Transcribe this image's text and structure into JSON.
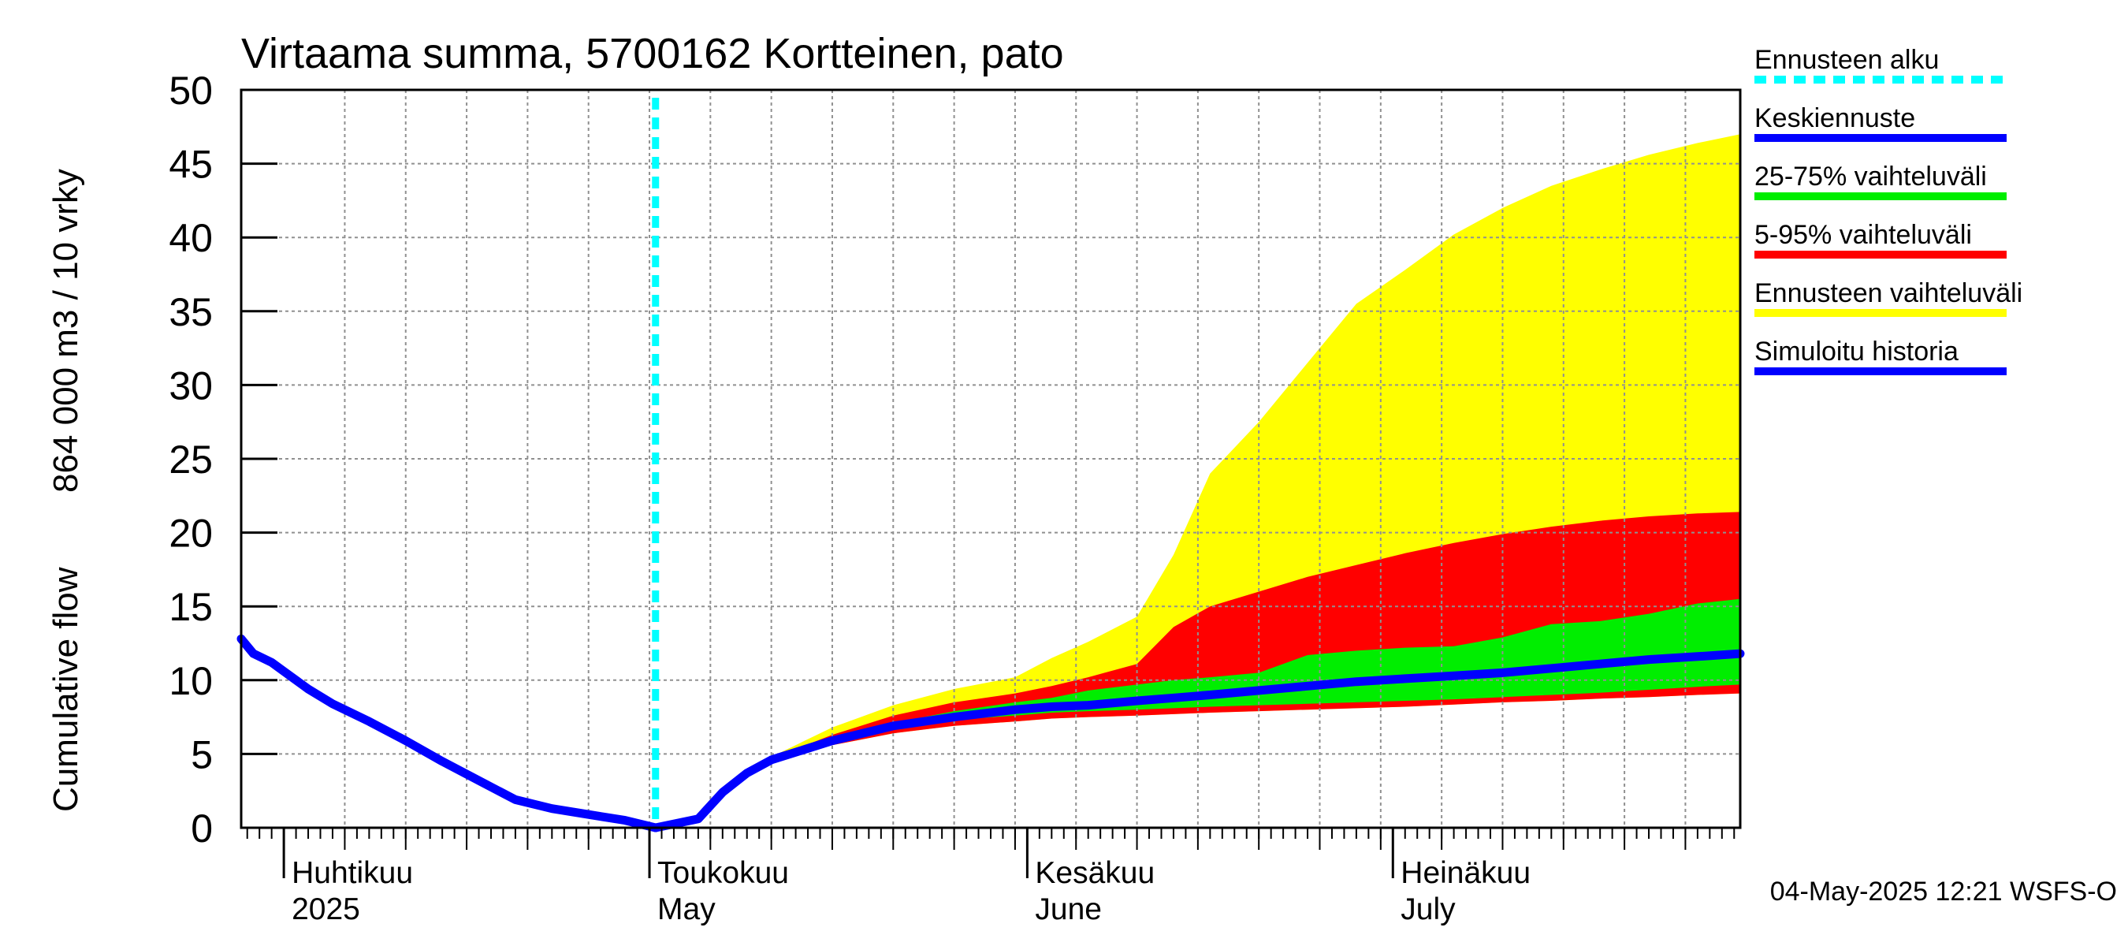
{
  "chart_data": {
    "type": "area",
    "title": "Virtaama summa, 5700162 Kortteinen, pato",
    "ylabel_left": "Cumulative flow",
    "ylabel_right": "864 000 m3 / 10 vrky",
    "ylim": [
      0,
      50
    ],
    "yticks": [
      "0",
      "5",
      "10",
      "15",
      "20",
      "25",
      "30",
      "35",
      "40",
      "45",
      "50"
    ],
    "xlim_days": [
      -3.5,
      119.5
    ],
    "x_unit": "days since 2025-04-01",
    "month_labels": [
      {
        "day": 0,
        "fi": "Huhtikuu",
        "en": "2025"
      },
      {
        "day": 30,
        "fi": "Toukokuu",
        "en": "May"
      },
      {
        "day": 61,
        "fi": "Kesäkuu",
        "en": "June"
      },
      {
        "day": 91,
        "fi": "Heinäkuu",
        "en": "July"
      }
    ],
    "forecast_start_day": 30.5,
    "series": [
      {
        "name": "Ennusteen vaihteluväli",
        "role": "band",
        "color": "#ffff00",
        "x": [
          30.5,
          34,
          36,
          38,
          40,
          45,
          50,
          55,
          60,
          63,
          66,
          70,
          73,
          76,
          80,
          84,
          88,
          92,
          96,
          100,
          104,
          108,
          112,
          116,
          119.5
        ],
        "lower": [
          0,
          0.6,
          2.3,
          3.6,
          4.5,
          5.6,
          6.4,
          6.9,
          7.2,
          7.4,
          7.5,
          7.6,
          7.7,
          7.8,
          7.9,
          8.0,
          8.1,
          8.2,
          8.35,
          8.5,
          8.6,
          8.75,
          8.85,
          9.0,
          9.1
        ],
        "upper": [
          0,
          0.6,
          2.4,
          3.8,
          4.8,
          6.8,
          8.3,
          9.4,
          10.2,
          11.5,
          12.6,
          14.3,
          18.5,
          24.0,
          27.5,
          31.5,
          35.5,
          37.8,
          40.2,
          42.0,
          43.5,
          44.6,
          45.6,
          46.4,
          47.0
        ]
      },
      {
        "name": "5-95% vaihteluväli",
        "role": "band",
        "color": "#ff0000",
        "x": [
          30.5,
          34,
          36,
          38,
          40,
          45,
          50,
          55,
          60,
          63,
          66,
          70,
          73,
          76,
          80,
          84,
          88,
          92,
          96,
          100,
          104,
          108,
          112,
          116,
          119.5
        ],
        "lower": [
          0,
          0.6,
          2.3,
          3.6,
          4.5,
          5.6,
          6.4,
          6.9,
          7.2,
          7.4,
          7.5,
          7.6,
          7.7,
          7.8,
          7.9,
          8.0,
          8.1,
          8.2,
          8.35,
          8.5,
          8.6,
          8.75,
          8.85,
          9.0,
          9.1
        ],
        "upper": [
          0,
          0.6,
          2.4,
          3.8,
          4.7,
          6.3,
          7.6,
          8.5,
          9.1,
          9.6,
          10.2,
          11.1,
          13.6,
          15.0,
          16.0,
          17.0,
          17.8,
          18.6,
          19.3,
          19.9,
          20.4,
          20.8,
          21.1,
          21.3,
          21.4
        ]
      },
      {
        "name": "25-75% vaihteluväli",
        "role": "band",
        "color": "#00ee00",
        "x": [
          30.5,
          34,
          36,
          38,
          40,
          45,
          50,
          55,
          60,
          63,
          66,
          70,
          73,
          76,
          80,
          84,
          88,
          92,
          96,
          100,
          104,
          108,
          112,
          116,
          119.5
        ],
        "lower": [
          0,
          0.6,
          2.3,
          3.7,
          4.6,
          5.8,
          6.7,
          7.3,
          7.6,
          7.8,
          7.9,
          8.0,
          8.1,
          8.2,
          8.3,
          8.4,
          8.5,
          8.6,
          8.7,
          8.85,
          9.0,
          9.15,
          9.35,
          9.55,
          9.7
        ],
        "upper": [
          0,
          0.6,
          2.4,
          3.8,
          4.7,
          6.0,
          7.1,
          7.9,
          8.5,
          8.8,
          9.3,
          9.7,
          10.0,
          10.2,
          10.5,
          11.7,
          12.0,
          12.2,
          12.3,
          12.9,
          13.8,
          14.0,
          14.5,
          15.2,
          15.5
        ]
      },
      {
        "name": "Keskiennuste",
        "role": "line",
        "color": "#0000ff",
        "x": [
          30.5,
          34,
          36,
          38,
          40,
          45,
          50,
          55,
          60,
          63,
          66,
          70,
          73,
          76,
          80,
          84,
          88,
          92,
          96,
          100,
          104,
          108,
          112,
          116,
          119.5
        ],
        "y": [
          0,
          0.6,
          2.4,
          3.7,
          4.6,
          5.9,
          6.9,
          7.5,
          8.0,
          8.2,
          8.3,
          8.6,
          8.8,
          9.0,
          9.3,
          9.6,
          9.9,
          10.1,
          10.3,
          10.5,
          10.8,
          11.1,
          11.4,
          11.6,
          11.8
        ]
      },
      {
        "name": "Simuloitu historia",
        "role": "line",
        "color": "#0000ff",
        "x": [
          -3.5,
          -2.5,
          -1,
          0,
          2,
          4,
          7,
          10,
          13,
          16,
          19,
          22,
          25,
          28,
          30.5
        ],
        "y": [
          12.8,
          11.8,
          11.2,
          10.6,
          9.4,
          8.4,
          7.2,
          5.9,
          4.5,
          3.2,
          1.9,
          1.3,
          0.9,
          0.5,
          0.0
        ]
      }
    ],
    "legend": [
      {
        "label": "Ennusteen alku",
        "color": "#00ffff",
        "style": "dashed"
      },
      {
        "label": "Keskiennuste",
        "color": "#0000ff",
        "style": "solid"
      },
      {
        "label": "25-75% vaihteluväli",
        "color": "#00ee00",
        "style": "solid"
      },
      {
        "label": "5-95% vaihteluväli",
        "color": "#ff0000",
        "style": "solid"
      },
      {
        "label": "Ennusteen vaihteluväli",
        "color": "#ffff00",
        "style": "solid"
      },
      {
        "label": "Simuloitu historia",
        "color": "#0000ff",
        "style": "solid"
      }
    ],
    "grid": true,
    "legend_position": "right"
  },
  "footer": {
    "timestamp": "04-May-2025 12:21 WSFS-O"
  }
}
